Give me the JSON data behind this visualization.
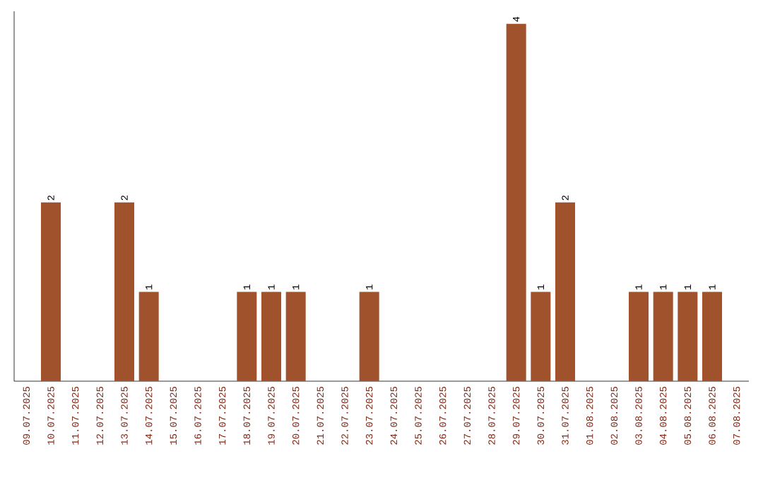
{
  "chart_data": {
    "type": "bar",
    "categories": [
      "09.07.2025",
      "10.07.2025",
      "11.07.2025",
      "12.07.2025",
      "13.07.2025",
      "14.07.2025",
      "15.07.2025",
      "16.07.2025",
      "17.07.2025",
      "18.07.2025",
      "19.07.2025",
      "20.07.2025",
      "21.07.2025",
      "22.07.2025",
      "23.07.2025",
      "24.07.2025",
      "25.07.2025",
      "26.07.2025",
      "27.07.2025",
      "28.07.2025",
      "29.07.2025",
      "30.07.2025",
      "31.07.2025",
      "01.08.2025",
      "02.08.2025",
      "03.08.2025",
      "04.08.2025",
      "05.08.2025",
      "06.08.2025",
      "07.08.2025"
    ],
    "values": [
      0,
      2,
      0,
      0,
      2,
      1,
      0,
      0,
      0,
      1,
      1,
      1,
      0,
      0,
      1,
      0,
      0,
      0,
      0,
      0,
      4,
      1,
      2,
      0,
      0,
      1,
      1,
      1,
      1,
      0
    ],
    "value_labels": [
      null,
      "2",
      null,
      null,
      "2",
      "1",
      null,
      null,
      null,
      "1",
      "1",
      "1",
      null,
      null,
      "1",
      null,
      null,
      null,
      null,
      null,
      "4",
      "1",
      "2",
      null,
      null,
      "1",
      "1",
      "1",
      "1",
      null
    ],
    "color": "#a0522d"
  }
}
